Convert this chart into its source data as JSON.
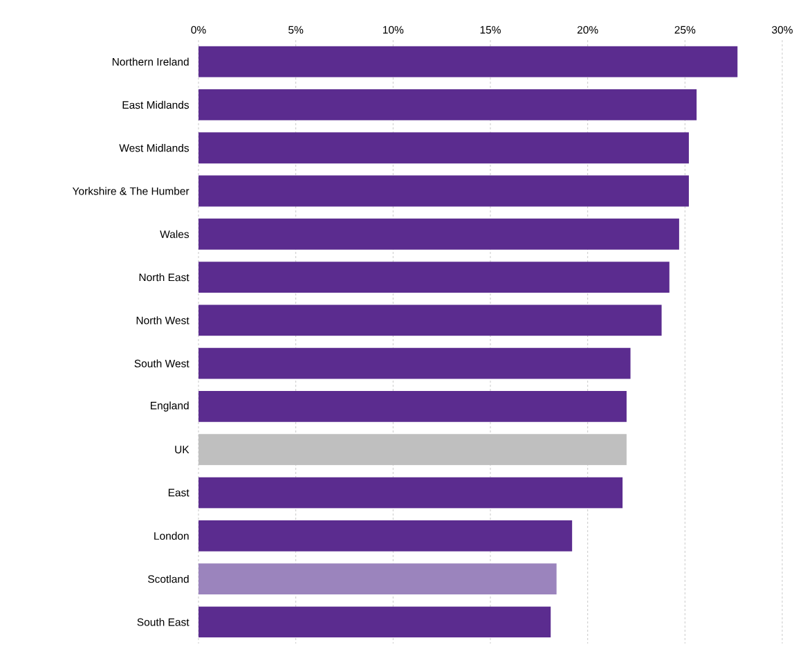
{
  "chart_data": {
    "type": "bar",
    "orientation": "horizontal",
    "categories": [
      "Northern Ireland",
      "East Midlands",
      "West Midlands",
      "Yorkshire & The Humber",
      "Wales",
      "North East",
      "North West",
      "South West",
      "England",
      "UK",
      "East",
      "London",
      "Scotland",
      "South East"
    ],
    "values": [
      27.7,
      25.6,
      25.2,
      25.2,
      24.7,
      24.2,
      23.8,
      22.2,
      22.0,
      22.0,
      21.8,
      19.2,
      18.4,
      18.1
    ],
    "colors": [
      "#5b2c8f",
      "#5b2c8f",
      "#5b2c8f",
      "#5b2c8f",
      "#5b2c8f",
      "#5b2c8f",
      "#5b2c8f",
      "#5b2c8f",
      "#5b2c8f",
      "#bfbfbf",
      "#5b2c8f",
      "#5b2c8f",
      "#9b84bd",
      "#5b2c8f"
    ],
    "xlim": [
      0,
      30
    ],
    "xticks": [
      {
        "value": 0,
        "label": "0%"
      },
      {
        "value": 5,
        "label": "5%"
      },
      {
        "value": 10,
        "label": "10%"
      },
      {
        "value": 15,
        "label": "15%"
      },
      {
        "value": 20,
        "label": "20%"
      },
      {
        "value": 25,
        "label": "25%"
      },
      {
        "value": 30,
        "label": "30%"
      }
    ],
    "grid": "x"
  }
}
